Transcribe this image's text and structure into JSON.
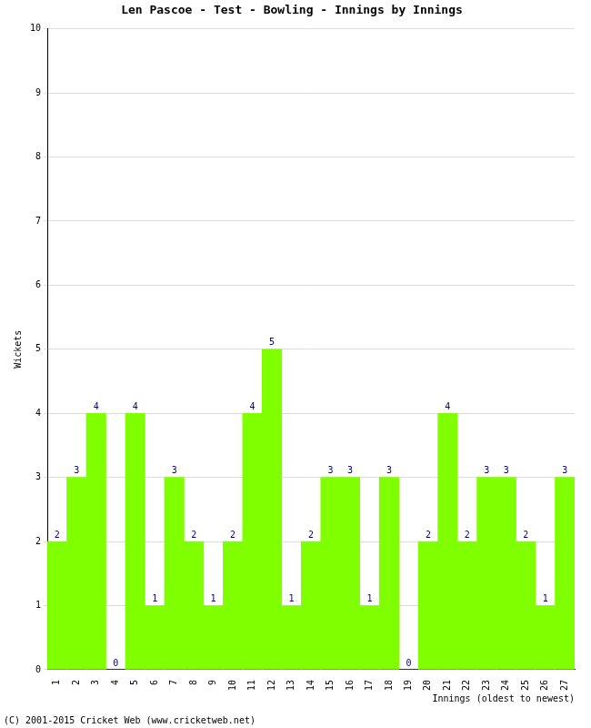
{
  "chart_data": {
    "type": "bar",
    "title": "Len Pascoe - Test - Bowling - Innings by Innings",
    "x_label": "Innings (oldest to newest)",
    "y_label": "Wickets",
    "annotations": [
      "(C) 2001-2015 Cricket Web (www.cricketweb.net)"
    ],
    "categories": [
      "1",
      "2",
      "3",
      "4",
      "5",
      "6",
      "7",
      "8",
      "9",
      "10",
      "11",
      "12",
      "13",
      "14",
      "15",
      "16",
      "17",
      "18",
      "19",
      "20",
      "21",
      "22",
      "23",
      "24",
      "25",
      "26",
      "27"
    ],
    "values": [
      2,
      3,
      4,
      0,
      4,
      1,
      3,
      2,
      1,
      2,
      4,
      5,
      1,
      2,
      3,
      3,
      1,
      3,
      0,
      2,
      4,
      2,
      3,
      3,
      2,
      1,
      3
    ],
    "color": "#80ff00",
    "ylim": [
      0,
      10
    ],
    "yticks": [
      0,
      1,
      2,
      3,
      4,
      5,
      6,
      7,
      8,
      9,
      10
    ],
    "grid": true,
    "data_labels": true
  }
}
